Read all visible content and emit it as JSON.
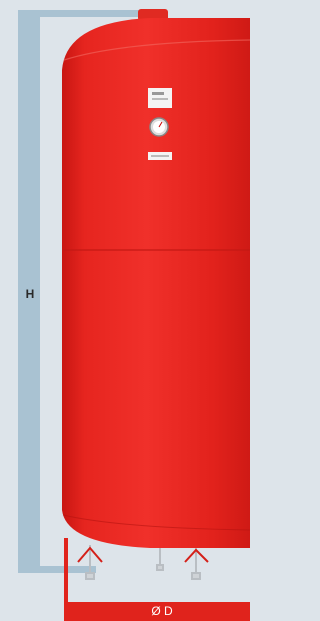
{
  "dimensions": {
    "height_label": "H",
    "diameter_label": "Ø D"
  }
}
